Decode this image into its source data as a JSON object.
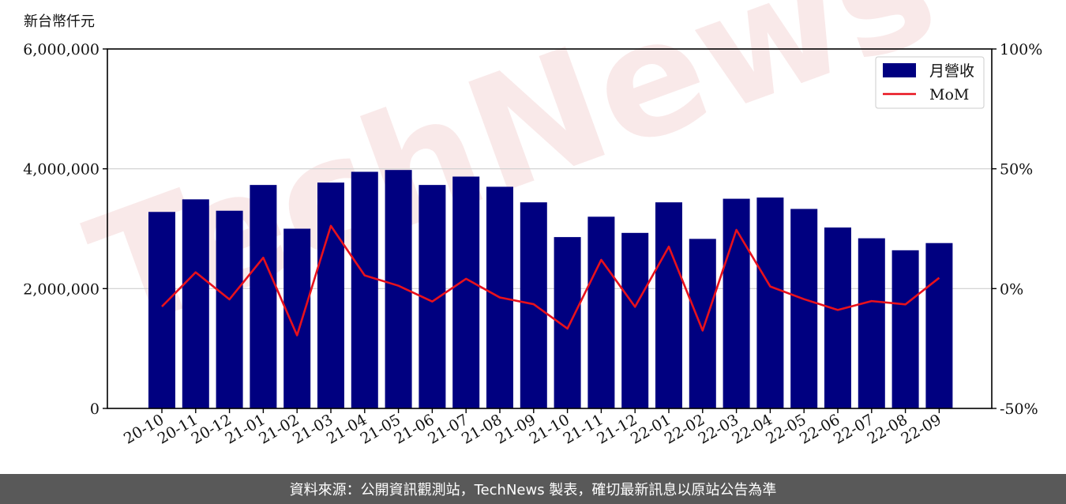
{
  "colors": {
    "bar": "#000080",
    "line": "#e8111c",
    "footer_bg": "#595959",
    "watermark": "#f6dcdc"
  },
  "watermark": "TechNews",
  "footer": {
    "text": "資料來源：公開資訊觀測站，TechNews 製表，確切最新訊息以原站公告為準"
  },
  "chart_data": {
    "type": "bar",
    "y_unit_label": "新台幣仟元",
    "categories": [
      "20-10",
      "20-11",
      "20-12",
      "21-01",
      "21-02",
      "21-03",
      "21-04",
      "21-05",
      "21-06",
      "21-07",
      "21-08",
      "21-09",
      "21-10",
      "21-11",
      "21-12",
      "22-01",
      "22-02",
      "22-03",
      "22-04",
      "22-05",
      "22-06",
      "22-07",
      "22-08",
      "22-09"
    ],
    "series": [
      {
        "name": "月營收",
        "type": "bar",
        "axis": "left",
        "values": [
          3280000,
          3490000,
          3300000,
          3730000,
          3000000,
          3770000,
          3950000,
          3980000,
          3730000,
          3870000,
          3700000,
          3440000,
          2860000,
          3200000,
          2930000,
          3440000,
          2830000,
          3500000,
          3520000,
          3330000,
          3020000,
          2840000,
          2640000,
          2760000
        ]
      },
      {
        "name": "MoM",
        "type": "line",
        "axis": "right",
        "values": [
          -7.5,
          6.8,
          -4.5,
          12.9,
          -19.5,
          26.2,
          5.5,
          1.2,
          -5.4,
          4.1,
          -3.7,
          -6.5,
          -16.7,
          12.0,
          -7.6,
          17.5,
          -17.5,
          24.5,
          0.9,
          -4.4,
          -8.9,
          -5.2,
          -6.6,
          4.5
        ]
      }
    ],
    "left_axis": {
      "ylim": [
        0,
        6000000
      ],
      "ticks": [
        "0",
        "2,000,000",
        "4,000,000",
        "6,000,000"
      ]
    },
    "right_axis": {
      "ylim": [
        -50,
        100
      ],
      "ticks": [
        "-50%",
        "0%",
        "50%",
        "100%"
      ]
    },
    "grid": "horizontal",
    "legend_position": "top-right"
  }
}
